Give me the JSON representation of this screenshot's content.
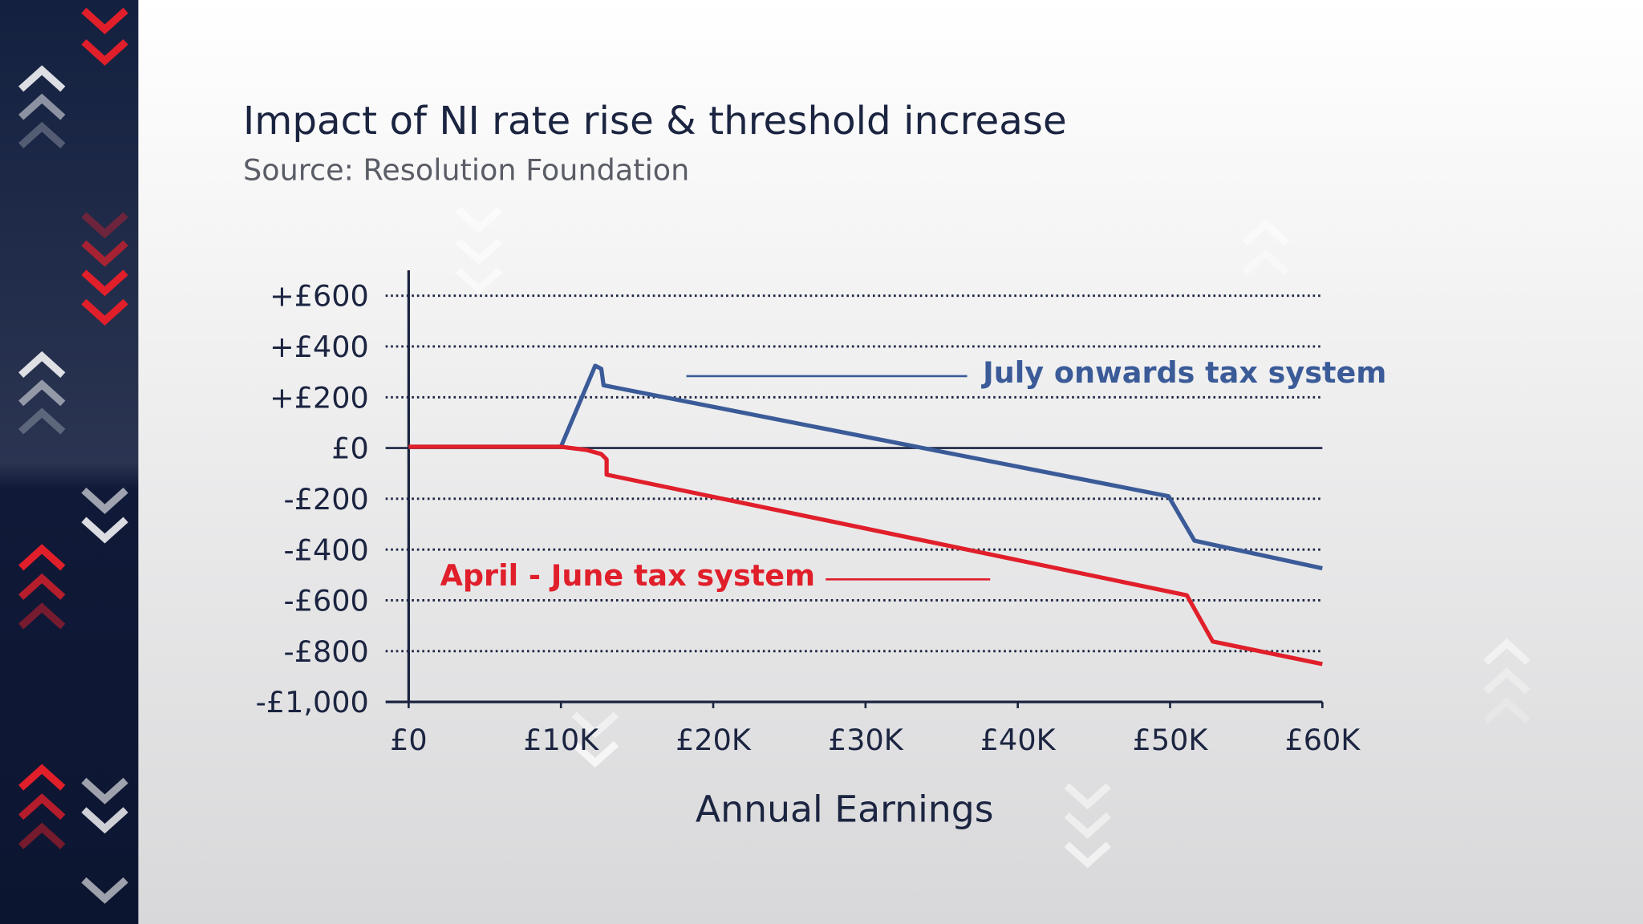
{
  "chart_data": {
    "type": "line",
    "title": "Impact of NI rate rise & threshold increase",
    "subtitle": "Source: Resolution Foundation",
    "x_label": "Annual Earnings",
    "xlim": [
      0,
      60000
    ],
    "xticks": [
      {
        "value": 0,
        "label": "£0"
      },
      {
        "value": 10000,
        "label": "£10K"
      },
      {
        "value": 20000,
        "label": "£20K"
      },
      {
        "value": 30000,
        "label": "£30K"
      },
      {
        "value": 40000,
        "label": "£40K"
      },
      {
        "value": 50000,
        "label": "£50K"
      },
      {
        "value": 60000,
        "label": "£60K"
      }
    ],
    "ylim": [
      -1000,
      700
    ],
    "yticks": [
      {
        "value": -1000,
        "label": "-£1,000"
      },
      {
        "value": -800,
        "label": "-£800"
      },
      {
        "value": -600,
        "label": "-£600"
      },
      {
        "value": -400,
        "label": "-£400"
      },
      {
        "value": -200,
        "label": "-£200"
      },
      {
        "value": 0,
        "label": "£0"
      },
      {
        "value": 200,
        "label": "+£200"
      },
      {
        "value": 400,
        "label": "+£400"
      },
      {
        "value": 600,
        "label": "+£600"
      }
    ],
    "grid": true,
    "series": [
      {
        "name": "July onwards tax system",
        "color": "#3b5b98",
        "x": [
          0,
          10000,
          12250,
          12650,
          12800,
          49900,
          51600,
          60000
        ],
        "values": [
          5,
          5,
          324,
          312,
          247,
          -190,
          -365,
          -474
        ]
      },
      {
        "name": "April - June tax system",
        "color": "#e01f2a",
        "x": [
          0,
          10000,
          11700,
          12650,
          13000,
          13000,
          51100,
          52800,
          60000
        ],
        "values": [
          5,
          5,
          -8,
          -24,
          -45,
          -105,
          -580,
          -762,
          -851
        ]
      }
    ]
  }
}
